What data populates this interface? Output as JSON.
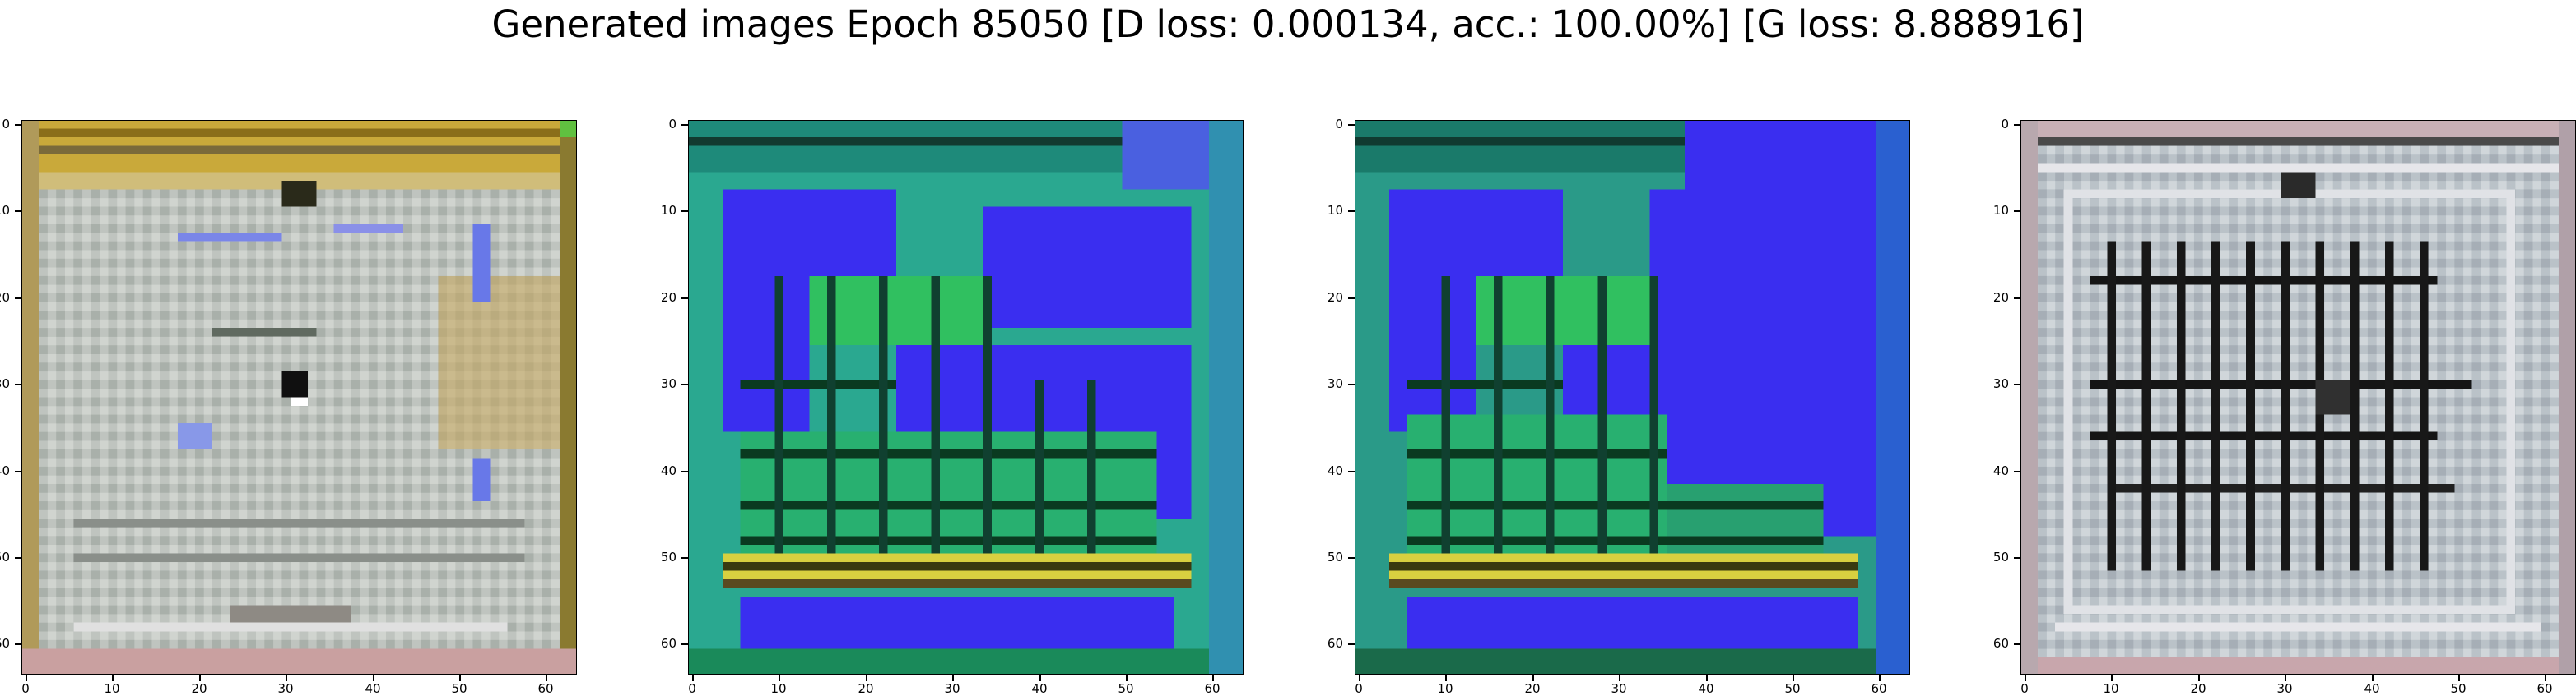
{
  "figure": {
    "title": "Generated images Epoch 85050 [D loss: 0.000134, acc.: 100.00%] [G loss: 8.888916]"
  },
  "axes": {
    "x_ticks": [
      "0",
      "10",
      "20",
      "30",
      "40",
      "50",
      "60"
    ],
    "y_ticks": [
      "0",
      "10",
      "20",
      "30",
      "40",
      "50",
      "60"
    ],
    "range": [
      0,
      63
    ]
  },
  "panels": [
    {
      "name": "sample-1",
      "palette": "beige-yellow-border",
      "base": "#b9bfb9",
      "border": "#b9a048",
      "accent": "#7080d8"
    },
    {
      "name": "sample-2",
      "palette": "blue-green",
      "base": "#3a30e8",
      "border": "#2aa890",
      "accent": "#30c060"
    },
    {
      "name": "sample-3",
      "palette": "blue-green",
      "base": "#3a30e8",
      "border": "#2a9080",
      "accent": "#30c060"
    },
    {
      "name": "sample-4",
      "palette": "grey-grid",
      "base": "#b8c0c6",
      "border": "#c0a6ac",
      "accent": "#1a1a1a"
    }
  ]
}
